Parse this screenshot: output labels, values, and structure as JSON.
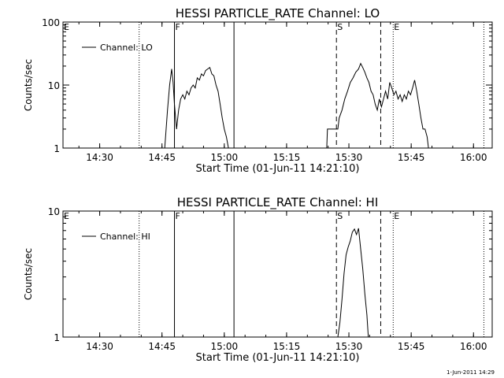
{
  "footer": {
    "timestamp": "1-Jun-2011 14:29"
  },
  "chart_data": [
    {
      "type": "line",
      "title": "HESSI PARTICLE_RATE Channel: LO",
      "xlabel": "Start Time (01-Jun-11 14:21:10)",
      "ylabel": "Counts/sec",
      "yscale": "log",
      "xlim": [
        "14:21:10",
        "16:04:30"
      ],
      "ylim": [
        1,
        100
      ],
      "xticks": [
        "14:30",
        "14:45",
        "15:00",
        "15:15",
        "15:30",
        "15:45",
        "16:00"
      ],
      "yticks": [
        "1",
        "10",
        "100"
      ],
      "legend": {
        "position": "top-left",
        "label": "Channel: LO"
      },
      "markers": [
        {
          "label": "E",
          "time": "14:21:10",
          "style": "none"
        },
        {
          "label": "",
          "time": "14:39:30",
          "style": "dotted"
        },
        {
          "label": "F",
          "time": "14:48:00",
          "style": "solid"
        },
        {
          "label": "",
          "time": "15:02:20",
          "style": "solid"
        },
        {
          "label": "S",
          "time": "15:27:00",
          "style": "dashed"
        },
        {
          "label": "",
          "time": "15:37:40",
          "style": "dashed"
        },
        {
          "label": "E",
          "time": "15:40:40",
          "style": "dotted"
        },
        {
          "label": "",
          "time": "16:02:30",
          "style": "dotted"
        }
      ],
      "series": [
        {
          "name": "Channel: LO",
          "segments": [
            [
              [
                "14:45:40",
                1
              ],
              [
                "14:46:20",
                4
              ],
              [
                "14:46:50",
                10
              ],
              [
                "14:47:20",
                18
              ],
              [
                "14:47:40",
                11
              ],
              [
                "14:48:00",
                5
              ],
              [
                "14:48:30",
                2
              ],
              [
                "14:49:00",
                4
              ],
              [
                "14:49:30",
                6
              ],
              [
                "14:50:00",
                7
              ],
              [
                "14:50:30",
                6
              ],
              [
                "14:51:00",
                8
              ],
              [
                "14:51:30",
                7
              ],
              [
                "14:52:00",
                9
              ],
              [
                "14:52:30",
                10
              ],
              [
                "14:53:00",
                9
              ],
              [
                "14:53:30",
                13
              ],
              [
                "14:54:00",
                12
              ],
              [
                "14:54:30",
                15
              ],
              [
                "14:55:00",
                14
              ],
              [
                "14:55:30",
                17
              ],
              [
                "14:56:00",
                18
              ],
              [
                "14:56:30",
                19
              ],
              [
                "14:57:00",
                15
              ],
              [
                "14:57:30",
                14
              ],
              [
                "14:58:00",
                10
              ],
              [
                "14:58:30",
                8
              ],
              [
                "14:59:00",
                5
              ],
              [
                "14:59:30",
                3
              ],
              [
                "15:00:00",
                2
              ],
              [
                "15:00:30",
                1.5
              ],
              [
                "15:01:00",
                1
              ]
            ],
            [
              [
                "15:24:40",
                1
              ],
              [
                "15:24:50",
                2
              ],
              [
                "15:27:20",
                2
              ],
              [
                "15:27:40",
                3
              ],
              [
                "15:28:20",
                4
              ],
              [
                "15:29:00",
                6
              ],
              [
                "15:29:40",
                8
              ],
              [
                "15:30:20",
                11
              ],
              [
                "15:31:00",
                13
              ],
              [
                "15:31:40",
                16
              ],
              [
                "15:32:20",
                18
              ],
              [
                "15:32:50",
                22
              ],
              [
                "15:33:20",
                19
              ],
              [
                "15:33:50",
                16
              ],
              [
                "15:34:20",
                13
              ],
              [
                "15:34:50",
                11
              ],
              [
                "15:35:20",
                8
              ],
              [
                "15:35:50",
                7
              ],
              [
                "15:36:20",
                5
              ],
              [
                "15:36:50",
                4
              ],
              [
                "15:37:20",
                6
              ],
              [
                "15:37:50",
                4.5
              ],
              [
                "15:38:20",
                6
              ],
              [
                "15:38:50",
                8
              ],
              [
                "15:39:20",
                6
              ],
              [
                "15:39:50",
                11
              ],
              [
                "15:40:20",
                9
              ],
              [
                "15:40:50",
                7
              ],
              [
                "15:41:20",
                8
              ],
              [
                "15:41:50",
                6
              ],
              [
                "15:42:20",
                7
              ],
              [
                "15:42:50",
                5.5
              ],
              [
                "15:43:20",
                7
              ],
              [
                "15:43:50",
                6
              ],
              [
                "15:44:20",
                8
              ],
              [
                "15:44:50",
                7
              ],
              [
                "15:45:20",
                9
              ],
              [
                "15:45:50",
                12
              ],
              [
                "15:46:20",
                8
              ],
              [
                "15:46:50",
                5
              ],
              [
                "15:47:20",
                3
              ],
              [
                "15:47:50",
                2
              ],
              [
                "15:48:20",
                2
              ],
              [
                "15:48:50",
                1.5
              ],
              [
                "15:49:10",
                1
              ]
            ]
          ]
        }
      ]
    },
    {
      "type": "line",
      "title": "HESSI PARTICLE_RATE Channel: HI",
      "xlabel": "Start Time (01-Jun-11 14:21:10)",
      "ylabel": "Counts/sec",
      "yscale": "log",
      "xlim": [
        "14:21:10",
        "16:04:30"
      ],
      "ylim": [
        1,
        10
      ],
      "xticks": [
        "14:30",
        "14:45",
        "15:00",
        "15:15",
        "15:30",
        "15:45",
        "16:00"
      ],
      "yticks": [
        "1",
        "10"
      ],
      "legend": {
        "position": "top-left",
        "label": "Channel: HI"
      },
      "markers": [
        {
          "label": "E",
          "time": "14:21:10",
          "style": "none"
        },
        {
          "label": "",
          "time": "14:39:30",
          "style": "dotted"
        },
        {
          "label": "F",
          "time": "14:48:00",
          "style": "solid"
        },
        {
          "label": "",
          "time": "15:02:20",
          "style": "solid"
        },
        {
          "label": "S",
          "time": "15:27:00",
          "style": "dashed"
        },
        {
          "label": "",
          "time": "15:37:40",
          "style": "dashed"
        },
        {
          "label": "E",
          "time": "15:40:40",
          "style": "dotted"
        },
        {
          "label": "",
          "time": "16:02:30",
          "style": "dotted"
        }
      ],
      "series": [
        {
          "name": "Channel: HI",
          "segments": [
            [
              [
                "15:27:20",
                1
              ],
              [
                "15:27:50",
                1.3
              ],
              [
                "15:28:20",
                2
              ],
              [
                "15:28:50",
                3.2
              ],
              [
                "15:29:20",
                4.5
              ],
              [
                "15:29:50",
                5.2
              ],
              [
                "15:30:20",
                5.8
              ],
              [
                "15:30:50",
                6.8
              ],
              [
                "15:31:20",
                7.2
              ],
              [
                "15:31:50",
                6.5
              ],
              [
                "15:32:20",
                7.3
              ],
              [
                "15:32:50",
                5
              ],
              [
                "15:33:20",
                3.5
              ],
              [
                "15:33:50",
                2.2
              ],
              [
                "15:34:20",
                1.5
              ],
              [
                "15:34:40",
                1
              ]
            ]
          ]
        }
      ]
    }
  ]
}
